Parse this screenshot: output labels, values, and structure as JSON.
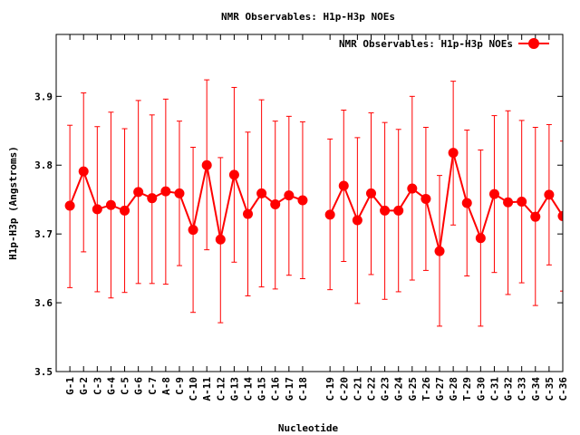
{
  "chart_data": {
    "type": "line",
    "title": "NMR Observables: H1p-H3p NOEs",
    "xlabel": "Nucleotide",
    "ylabel": "H1p-H3p (Angstroms)",
    "ylim": [
      3.5,
      3.99
    ],
    "yticks": [
      3.5,
      3.6,
      3.7,
      3.8,
      3.9
    ],
    "ytick_labels": [
      "3.5",
      "3.6",
      "3.7",
      "3.8",
      "3.9"
    ],
    "xlim": [
      0,
      37
    ],
    "grid": false,
    "legend_position": "top-right",
    "series": [
      {
        "name": "NMR Observables: H1p-H3p NOEs",
        "color": "#ff0000",
        "style": "linespoints with error bars",
        "points": [
          {
            "x": 1,
            "label": "G-1",
            "y": 3.741,
            "low": 3.622,
            "high": 3.858
          },
          {
            "x": 2,
            "label": "G-2",
            "y": 3.791,
            "low": 3.674,
            "high": 3.905
          },
          {
            "x": 3,
            "label": "C-3",
            "y": 3.736,
            "low": 3.616,
            "high": 3.856
          },
          {
            "x": 4,
            "label": "G-4",
            "y": 3.742,
            "low": 3.607,
            "high": 3.877
          },
          {
            "x": 5,
            "label": "C-5",
            "y": 3.734,
            "low": 3.615,
            "high": 3.853
          },
          {
            "x": 6,
            "label": "G-6",
            "y": 3.761,
            "low": 3.628,
            "high": 3.894
          },
          {
            "x": 7,
            "label": "C-7",
            "y": 3.752,
            "low": 3.628,
            "high": 3.873
          },
          {
            "x": 8,
            "label": "A-8",
            "y": 3.762,
            "low": 3.627,
            "high": 3.896
          },
          {
            "x": 9,
            "label": "C-9",
            "y": 3.759,
            "low": 3.654,
            "high": 3.864
          },
          {
            "x": 10,
            "label": "C-10",
            "y": 3.706,
            "low": 3.586,
            "high": 3.826
          },
          {
            "x": 11,
            "label": "A-11",
            "y": 3.8,
            "low": 3.677,
            "high": 3.924
          },
          {
            "x": 12,
            "label": "C-12",
            "y": 3.692,
            "low": 3.571,
            "high": 3.811
          },
          {
            "x": 13,
            "label": "G-13",
            "y": 3.786,
            "low": 3.659,
            "high": 3.913
          },
          {
            "x": 14,
            "label": "C-14",
            "y": 3.729,
            "low": 3.61,
            "high": 3.848
          },
          {
            "x": 15,
            "label": "G-15",
            "y": 3.759,
            "low": 3.623,
            "high": 3.895
          },
          {
            "x": 16,
            "label": "C-16",
            "y": 3.743,
            "low": 3.62,
            "high": 3.864
          },
          {
            "x": 17,
            "label": "G-17",
            "y": 3.756,
            "low": 3.64,
            "high": 3.871
          },
          {
            "x": 18,
            "label": "C-18",
            "y": 3.749,
            "low": 3.635,
            "high": 3.863
          },
          {
            "x": 20,
            "label": "C-19",
            "y": 3.728,
            "low": 3.619,
            "high": 3.838
          },
          {
            "x": 21,
            "label": "C-20",
            "y": 3.77,
            "low": 3.66,
            "high": 3.88
          },
          {
            "x": 22,
            "label": "C-21",
            "y": 3.72,
            "low": 3.599,
            "high": 3.84
          },
          {
            "x": 23,
            "label": "C-22",
            "y": 3.759,
            "low": 3.641,
            "high": 3.876
          },
          {
            "x": 24,
            "label": "G-23",
            "y": 3.734,
            "low": 3.605,
            "high": 3.862
          },
          {
            "x": 25,
            "label": "G-24",
            "y": 3.734,
            "low": 3.616,
            "high": 3.852
          },
          {
            "x": 26,
            "label": "G-25",
            "y": 3.766,
            "low": 3.633,
            "high": 3.9
          },
          {
            "x": 27,
            "label": "T-26",
            "y": 3.751,
            "low": 3.647,
            "high": 3.855
          },
          {
            "x": 28,
            "label": "G-27",
            "y": 3.675,
            "low": 3.566,
            "high": 3.785
          },
          {
            "x": 29,
            "label": "G-28",
            "y": 3.818,
            "low": 3.713,
            "high": 3.922
          },
          {
            "x": 30,
            "label": "T-29",
            "y": 3.745,
            "low": 3.639,
            "high": 3.851
          },
          {
            "x": 31,
            "label": "G-30",
            "y": 3.694,
            "low": 3.566,
            "high": 3.822
          },
          {
            "x": 32,
            "label": "C-31",
            "y": 3.758,
            "low": 3.644,
            "high": 3.872
          },
          {
            "x": 33,
            "label": "G-32",
            "y": 3.746,
            "low": 3.612,
            "high": 3.879
          },
          {
            "x": 34,
            "label": "C-33",
            "y": 3.747,
            "low": 3.629,
            "high": 3.865
          },
          {
            "x": 35,
            "label": "G-34",
            "y": 3.725,
            "low": 3.596,
            "high": 3.855
          },
          {
            "x": 36,
            "label": "C-35",
            "y": 3.757,
            "low": 3.655,
            "high": 3.859
          },
          {
            "x": 37,
            "label": "C-36",
            "y": 3.726,
            "low": 3.617,
            "high": 3.835
          }
        ]
      }
    ]
  }
}
